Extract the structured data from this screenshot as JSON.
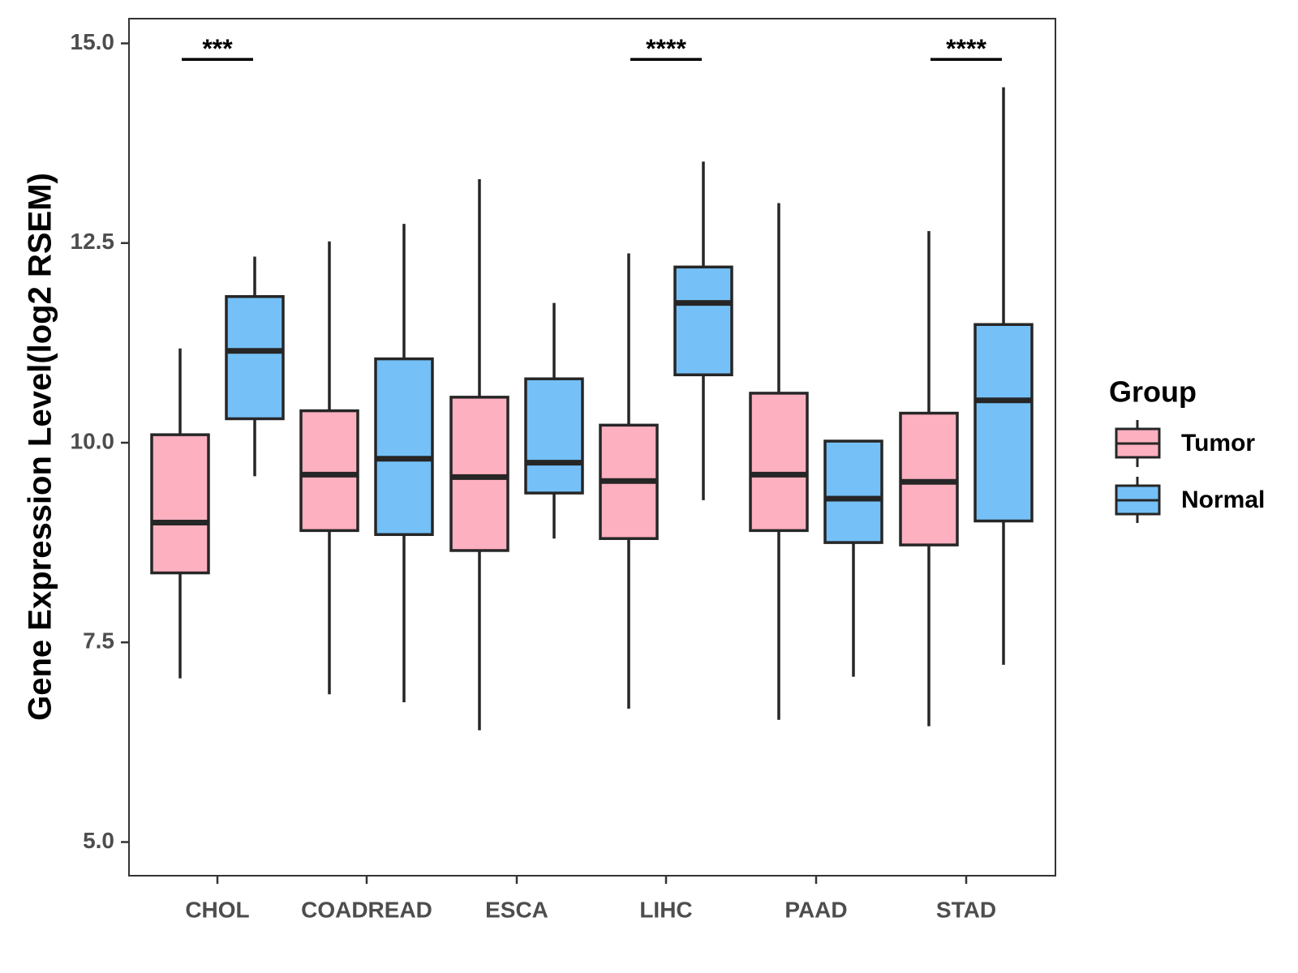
{
  "chart_data": {
    "type": "box",
    "title": "",
    "xlabel": "",
    "ylabel": "Gene Expression Level(log2 RSEM)",
    "ylim": [
      4.6,
      15.3
    ],
    "yticks": [
      5.0,
      7.5,
      10.0,
      12.5,
      15.0
    ],
    "ytick_labels": [
      "5.0",
      "7.5",
      "10.0",
      "12.5",
      "15.0"
    ],
    "grid": false,
    "categories": [
      "CHOL",
      "COADREAD",
      "ESCA",
      "LIHC",
      "PAAD",
      "STAD"
    ],
    "legend": {
      "title": "Group",
      "position": "right",
      "entries": [
        {
          "name": "Tumor",
          "color": "#FDB0C0"
        },
        {
          "name": "Normal",
          "color": "#75C1F7"
        }
      ]
    },
    "series": [
      {
        "name": "Tumor",
        "color": "#FDB0C0",
        "boxes": [
          {
            "category": "CHOL",
            "whisker_low": 7.05,
            "q1": 8.37,
            "median": 9.0,
            "q3": 10.1,
            "whisker_high": 11.18
          },
          {
            "category": "COADREAD",
            "whisker_low": 6.85,
            "q1": 8.9,
            "median": 9.6,
            "q3": 10.4,
            "whisker_high": 12.52
          },
          {
            "category": "ESCA",
            "whisker_low": 6.4,
            "q1": 8.65,
            "median": 9.57,
            "q3": 10.57,
            "whisker_high": 13.3
          },
          {
            "category": "LIHC",
            "whisker_low": 6.67,
            "q1": 8.8,
            "median": 9.52,
            "q3": 10.22,
            "whisker_high": 12.37
          },
          {
            "category": "PAAD",
            "whisker_low": 6.53,
            "q1": 8.9,
            "median": 9.6,
            "q3": 10.62,
            "whisker_high": 13.0
          },
          {
            "category": "STAD",
            "whisker_low": 6.45,
            "q1": 8.72,
            "median": 9.51,
            "q3": 10.37,
            "whisker_high": 12.65
          }
        ]
      },
      {
        "name": "Normal",
        "color": "#75C1F7",
        "boxes": [
          {
            "category": "CHOL",
            "whisker_low": 9.58,
            "q1": 10.3,
            "median": 11.15,
            "q3": 11.83,
            "whisker_high": 12.33
          },
          {
            "category": "COADREAD",
            "whisker_low": 6.75,
            "q1": 8.85,
            "median": 9.8,
            "q3": 11.05,
            "whisker_high": 12.74
          },
          {
            "category": "ESCA",
            "whisker_low": 8.8,
            "q1": 9.37,
            "median": 9.75,
            "q3": 10.8,
            "whisker_high": 11.75
          },
          {
            "category": "LIHC",
            "whisker_low": 9.28,
            "q1": 10.85,
            "median": 11.75,
            "q3": 12.2,
            "whisker_high": 13.52
          },
          {
            "category": "PAAD",
            "whisker_low": 7.07,
            "q1": 8.75,
            "median": 9.3,
            "q3": 10.02,
            "whisker_high": 10.02
          },
          {
            "category": "STAD",
            "whisker_low": 7.22,
            "q1": 9.02,
            "median": 10.53,
            "q3": 11.48,
            "whisker_high": 14.45
          }
        ]
      }
    ],
    "annotations": [
      {
        "category": "CHOL",
        "text": "***",
        "y": 14.8
      },
      {
        "category": "LIHC",
        "text": "****",
        "y": 14.8
      },
      {
        "category": "STAD",
        "text": "****",
        "y": 14.8
      }
    ]
  }
}
